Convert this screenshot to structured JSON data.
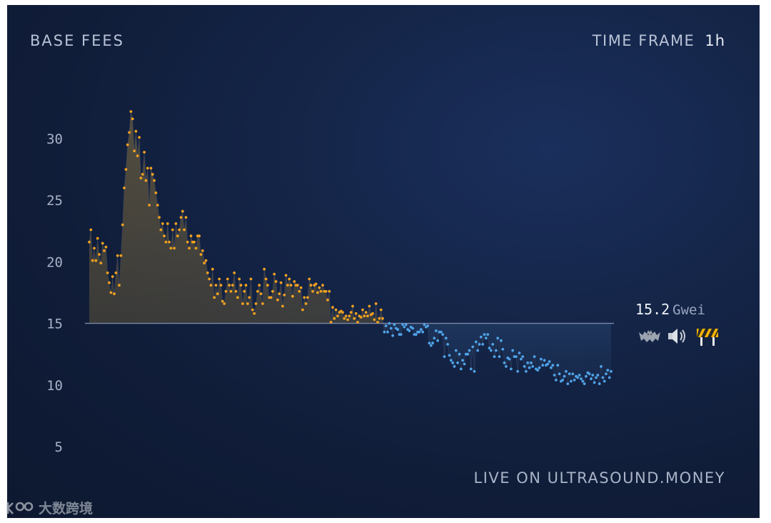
{
  "header": {
    "title": "BASE FEES",
    "timeframe_label": "TIME FRAME",
    "timeframe_value": "1h"
  },
  "footer": {
    "live_text": "LIVE ON ULTRASOUND.MONEY"
  },
  "current": {
    "value": "15.2",
    "unit": "Gwei",
    "icons": [
      "bat-icon",
      "speaker-icon",
      "roadblock-icon"
    ]
  },
  "watermark": {
    "text": "大数跨境"
  },
  "colors": {
    "above": "#f0a020",
    "below": "#4fa3e8",
    "axis_text": "#a8b2c6",
    "baseline": "#7c88a6"
  },
  "chart_data": {
    "type": "scatter",
    "title": "BASE FEES",
    "xlabel": "",
    "ylabel": "",
    "ylim": [
      2.5,
      33.5
    ],
    "yticks": [
      5,
      10,
      15,
      20,
      25,
      30
    ],
    "baseline": 15,
    "x_range": [
      0,
      250
    ],
    "series": [
      {
        "values": [
          21.6,
          22.6,
          20.1,
          21.1,
          20.1,
          21.9,
          20.6,
          19.9,
          21.5,
          20.9,
          21.2,
          19.1,
          18.3,
          17.5,
          18.8,
          17.4,
          19.1,
          20.5,
          18.1,
          20.5,
          23.0,
          26.0,
          27.5,
          29.5,
          30.5,
          32.2,
          31.6,
          29.0,
          30.6,
          28.6,
          30.1,
          26.8,
          27.1,
          28.9,
          26.6,
          27.6,
          24.6,
          27.6,
          27.1,
          26.6,
          25.6,
          24.6,
          23.6,
          22.6,
          23.1,
          22.1,
          21.6,
          23.1,
          21.6,
          21.1,
          22.6,
          21.1,
          23.1,
          22.1,
          22.6,
          23.6,
          24.1,
          22.6,
          23.6,
          21.6,
          21.1,
          22.1,
          21.6,
          21.6,
          21.1,
          22.1,
          22.1,
          20.6,
          20.9,
          19.9,
          20.1,
          19.1,
          18.6,
          18.1,
          19.4,
          17.1,
          18.1,
          17.4,
          18.6,
          18.1,
          16.8,
          16.6,
          17.6,
          18.6,
          18.1,
          17.6,
          18.1,
          19.1,
          17.6,
          17.1,
          18.6,
          18.1,
          16.6,
          17.6,
          18.1,
          16.6,
          17.1,
          18.6,
          16.1,
          15.8,
          16.6,
          17.6,
          18.1,
          17.4,
          16.6,
          19.4,
          18.6,
          18.1,
          17.1,
          17.1,
          17.6,
          19.0,
          18.4,
          16.9,
          17.4,
          18.3,
          16.4,
          17.3,
          18.9,
          18.1,
          18.6,
          18.1,
          17.2,
          18.4,
          18.1,
          18.1,
          17.6,
          17.9,
          16.1,
          17.1,
          16.6,
          17.1,
          18.6,
          18.1,
          17.6,
          18.1,
          18.2,
          17.5,
          17.9,
          17.6,
          18.1,
          17.6,
          17.6,
          16.9,
          17.6,
          15.1,
          16.3,
          15.4,
          16.1,
          15.6,
          15.9,
          16.0,
          15.9,
          15.4,
          15.6,
          15.3,
          15.6,
          15.9,
          16.4,
          15.4,
          15.8,
          15.1,
          15.6,
          15.5,
          16.1,
          15.6,
          15.9,
          15.6,
          16.4,
          15.7,
          15.8,
          15.3,
          16.6,
          15.1,
          15.4,
          16.1,
          15.4
        ],
        "color": "#f0a020"
      },
      {
        "values": [
          14.3,
          14.8,
          14.3,
          15.0,
          14.6,
          14.0,
          14.9,
          14.6,
          14.5,
          14.1,
          14.1,
          14.9,
          14.7,
          14.9,
          14.5,
          14.4,
          14.7,
          14.6,
          14.1,
          14.1,
          14.3,
          14.3,
          14.5,
          14.3,
          14.9,
          14.7,
          14.8,
          13.4,
          13.2,
          13.4,
          13.8,
          14.4,
          13.6,
          14.3,
          14.3,
          14.1,
          12.3,
          13.8,
          13.3,
          12.4,
          12.0,
          11.8,
          11.5,
          12.8,
          11.8,
          12.5,
          11.3,
          12.0,
          11.7,
          12.5,
          12.5,
          12.8,
          11.3,
          13.1,
          11.1,
          13.5,
          12.8,
          13.3,
          13.9,
          13.3,
          14.1,
          13.8,
          14.1,
          13.0,
          12.8,
          13.3,
          12.3,
          12.8,
          13.8,
          12.3,
          13.6,
          12.9,
          11.8,
          11.5,
          12.2,
          12.1,
          11.3,
          12.8,
          12.3,
          12.3,
          11.1,
          12.6,
          12.1,
          12.3,
          11.5,
          11.1,
          11.8,
          11.4,
          11.8,
          11.5,
          12.3,
          11.3,
          11.2,
          11.4,
          12.1,
          11.6,
          12.0,
          11.6,
          11.7,
          11.9,
          11.4,
          11.6,
          10.8,
          10.4,
          11.6,
          10.9,
          10.3,
          10.4,
          10.7,
          11.1,
          10.1,
          10.9,
          10.3,
          10.9,
          10.4,
          10.7,
          10.6,
          10.8,
          10.5,
          10.3,
          10.1,
          10.7,
          11.0,
          10.9,
          10.5,
          10.8,
          10.2,
          10.6,
          10.8,
          10.1,
          11.5,
          10.6,
          10.3,
          10.9,
          11.2,
          10.6,
          11.1
        ],
        "color": "#4fa3e8"
      }
    ]
  }
}
